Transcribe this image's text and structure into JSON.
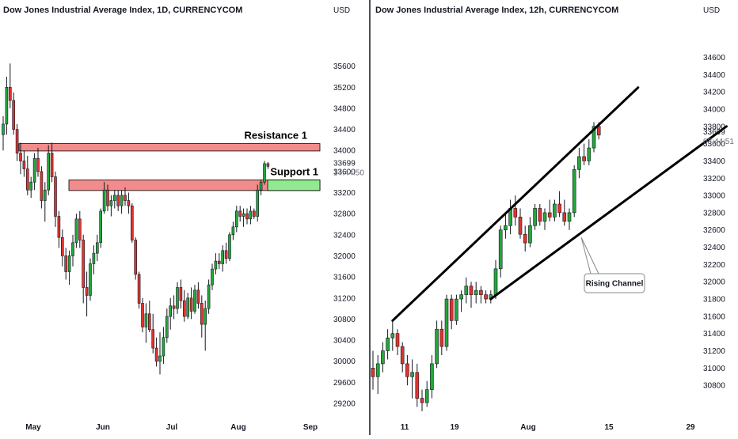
{
  "colors": {
    "up": "#22a83a",
    "down": "#e0342e",
    "wick": "#131722",
    "zone_resistance": "#f28b8b",
    "zone_support": "#93e98f",
    "panel_divider": "#131722"
  },
  "chart_data": [
    {
      "type": "candlestick",
      "title": "Dow Jones Industrial Average Index, 1D, CURRENCYCOM",
      "unit_label": "USD",
      "y_ticks": [
        "35600",
        "35200",
        "34800",
        "34400",
        "34000",
        "33600",
        "33200",
        "32800",
        "32400",
        "32000",
        "31600",
        "31200",
        "30800",
        "30400",
        "30000",
        "29600",
        "29200"
      ],
      "x_ticks": [
        "May",
        "Jun",
        "Jul",
        "Aug",
        "Sep"
      ],
      "ylim": [
        29050,
        36150
      ],
      "last_price": "33699",
      "countdown": "14:44:50",
      "annotations": [
        {
          "label": "Resistance 1",
          "y_low": 33990,
          "y_high": 34130
        },
        {
          "label": "Support 1",
          "y_low": 33240,
          "y_high": 33440
        }
      ],
      "candles": [
        {
          "o": 34300,
          "h": 34650,
          "l": 34000,
          "c": 34500
        },
        {
          "o": 34500,
          "h": 35400,
          "l": 34300,
          "c": 35200
        },
        {
          "o": 35200,
          "h": 35650,
          "l": 34800,
          "c": 34950
        },
        {
          "o": 34950,
          "h": 35100,
          "l": 34300,
          "c": 34400
        },
        {
          "o": 34400,
          "h": 34500,
          "l": 33800,
          "c": 33950
        },
        {
          "o": 33950,
          "h": 34150,
          "l": 33550,
          "c": 33800
        },
        {
          "o": 33800,
          "h": 34000,
          "l": 33500,
          "c": 33650
        },
        {
          "o": 33650,
          "h": 33900,
          "l": 33150,
          "c": 33250
        },
        {
          "o": 33250,
          "h": 33500,
          "l": 33100,
          "c": 33400
        },
        {
          "o": 33400,
          "h": 33950,
          "l": 33250,
          "c": 33850
        },
        {
          "o": 33850,
          "h": 34050,
          "l": 33500,
          "c": 33600
        },
        {
          "o": 33600,
          "h": 33700,
          "l": 32900,
          "c": 33050
        },
        {
          "o": 33050,
          "h": 33400,
          "l": 32650,
          "c": 33250
        },
        {
          "o": 33250,
          "h": 34100,
          "l": 33150,
          "c": 33950
        },
        {
          "o": 33950,
          "h": 34150,
          "l": 33400,
          "c": 33500
        },
        {
          "o": 33500,
          "h": 33600,
          "l": 32550,
          "c": 32750
        },
        {
          "o": 32750,
          "h": 32850,
          "l": 32150,
          "c": 32350
        },
        {
          "o": 32350,
          "h": 32500,
          "l": 31800,
          "c": 32000
        },
        {
          "o": 32000,
          "h": 32150,
          "l": 31550,
          "c": 31700
        },
        {
          "o": 31700,
          "h": 32100,
          "l": 31450,
          "c": 32000
        },
        {
          "o": 32000,
          "h": 32400,
          "l": 31800,
          "c": 32250
        },
        {
          "o": 32250,
          "h": 32800,
          "l": 32150,
          "c": 32700
        },
        {
          "o": 32700,
          "h": 32850,
          "l": 32150,
          "c": 32300
        },
        {
          "o": 32300,
          "h": 32400,
          "l": 31100,
          "c": 31400
        },
        {
          "o": 31400,
          "h": 31700,
          "l": 30850,
          "c": 31250
        },
        {
          "o": 31250,
          "h": 31950,
          "l": 31150,
          "c": 31850
        },
        {
          "o": 31850,
          "h": 32200,
          "l": 31650,
          "c": 32050
        },
        {
          "o": 32050,
          "h": 32400,
          "l": 31900,
          "c": 32250
        },
        {
          "o": 32250,
          "h": 32900,
          "l": 32150,
          "c": 32850
        },
        {
          "o": 32850,
          "h": 33400,
          "l": 32800,
          "c": 33250
        },
        {
          "o": 33250,
          "h": 33350,
          "l": 32850,
          "c": 32950
        },
        {
          "o": 32950,
          "h": 33150,
          "l": 32750,
          "c": 33050
        },
        {
          "o": 33050,
          "h": 33250,
          "l": 32900,
          "c": 33150
        },
        {
          "o": 33150,
          "h": 33250,
          "l": 32850,
          "c": 32950
        },
        {
          "o": 32950,
          "h": 33250,
          "l": 32800,
          "c": 33150
        },
        {
          "o": 33150,
          "h": 33300,
          "l": 32950,
          "c": 33050
        },
        {
          "o": 33050,
          "h": 33200,
          "l": 32800,
          "c": 32950
        },
        {
          "o": 32950,
          "h": 33000,
          "l": 32250,
          "c": 32300
        },
        {
          "o": 32300,
          "h": 32350,
          "l": 31550,
          "c": 31650
        },
        {
          "o": 31650,
          "h": 31700,
          "l": 31000,
          "c": 31100
        },
        {
          "o": 31100,
          "h": 31200,
          "l": 30550,
          "c": 30650
        },
        {
          "o": 30650,
          "h": 31100,
          "l": 30350,
          "c": 30900
        },
        {
          "o": 30900,
          "h": 31150,
          "l": 30550,
          "c": 30600
        },
        {
          "o": 30600,
          "h": 30900,
          "l": 30150,
          "c": 30250
        },
        {
          "o": 30250,
          "h": 30450,
          "l": 29900,
          "c": 30000
        },
        {
          "o": 30000,
          "h": 30550,
          "l": 29750,
          "c": 30100
        },
        {
          "o": 30100,
          "h": 30650,
          "l": 29950,
          "c": 30450
        },
        {
          "o": 30450,
          "h": 31000,
          "l": 30350,
          "c": 30850
        },
        {
          "o": 30850,
          "h": 31200,
          "l": 30600,
          "c": 31050
        },
        {
          "o": 31050,
          "h": 31250,
          "l": 30800,
          "c": 31000
        },
        {
          "o": 31000,
          "h": 31500,
          "l": 30900,
          "c": 31400
        },
        {
          "o": 31400,
          "h": 31550,
          "l": 31000,
          "c": 31150
        },
        {
          "o": 31150,
          "h": 31350,
          "l": 30750,
          "c": 30850
        },
        {
          "o": 30850,
          "h": 31300,
          "l": 30800,
          "c": 31200
        },
        {
          "o": 31200,
          "h": 31400,
          "l": 30800,
          "c": 30950
        },
        {
          "o": 30950,
          "h": 31450,
          "l": 30900,
          "c": 31350
        },
        {
          "o": 31350,
          "h": 31500,
          "l": 31000,
          "c": 31100
        },
        {
          "o": 31100,
          "h": 31250,
          "l": 30450,
          "c": 30700
        },
        {
          "o": 30700,
          "h": 31150,
          "l": 30200,
          "c": 31000
        },
        {
          "o": 31000,
          "h": 31550,
          "l": 30900,
          "c": 31450
        },
        {
          "o": 31450,
          "h": 31850,
          "l": 31350,
          "c": 31750
        },
        {
          "o": 31750,
          "h": 32050,
          "l": 31650,
          "c": 31900
        },
        {
          "o": 31900,
          "h": 32050,
          "l": 31750,
          "c": 31850
        },
        {
          "o": 31850,
          "h": 32200,
          "l": 31700,
          "c": 32100
        },
        {
          "o": 32100,
          "h": 32250,
          "l": 31850,
          "c": 31950
        },
        {
          "o": 31950,
          "h": 32450,
          "l": 31900,
          "c": 32400
        },
        {
          "o": 32400,
          "h": 32650,
          "l": 32300,
          "c": 32550
        },
        {
          "o": 32550,
          "h": 32950,
          "l": 32450,
          "c": 32850
        },
        {
          "o": 32850,
          "h": 32950,
          "l": 32650,
          "c": 32750
        },
        {
          "o": 32750,
          "h": 32900,
          "l": 32550,
          "c": 32800
        },
        {
          "o": 32800,
          "h": 32900,
          "l": 32600,
          "c": 32700
        },
        {
          "o": 32700,
          "h": 32950,
          "l": 32600,
          "c": 32850
        },
        {
          "o": 32850,
          "h": 32900,
          "l": 32700,
          "c": 32750
        },
        {
          "o": 32750,
          "h": 33350,
          "l": 32650,
          "c": 33250
        },
        {
          "o": 33250,
          "h": 33450,
          "l": 33150,
          "c": 33400
        },
        {
          "o": 33400,
          "h": 33800,
          "l": 33350,
          "c": 33750
        },
        {
          "o": 33750,
          "h": 33780,
          "l": 33650,
          "c": 33699
        }
      ]
    },
    {
      "type": "candlestick",
      "title": "Dow Jones Industrial Average Index, 12h, CURRENCYCOM",
      "unit_label": "USD",
      "y_ticks": [
        "34600",
        "34400",
        "34200",
        "34000",
        "33800",
        "33600",
        "33400",
        "33200",
        "33000",
        "32800",
        "32600",
        "32400",
        "32200",
        "32000",
        "31800",
        "31600",
        "31400",
        "31200",
        "31000",
        "30800"
      ],
      "x_ticks": [
        "11",
        "19",
        "Aug",
        "15",
        "29"
      ],
      "ylim": [
        30600,
        34870
      ],
      "last_price": "33699",
      "countdown": "03:44:51",
      "annotations": [
        {
          "label": "Rising Channel"
        }
      ],
      "channel": {
        "upper": [
          {
            "i": 4,
            "v": 31550
          },
          {
            "i": 54,
            "v": 34250
          }
        ],
        "lower": [
          {
            "i": 24,
            "v": 31800
          },
          {
            "i": 72,
            "v": 33800
          }
        ]
      },
      "candles": [
        {
          "o": 31000,
          "h": 31200,
          "l": 30750,
          "c": 30900
        },
        {
          "o": 30900,
          "h": 31150,
          "l": 30700,
          "c": 31050
        },
        {
          "o": 31050,
          "h": 31300,
          "l": 30950,
          "c": 31200
        },
        {
          "o": 31200,
          "h": 31450,
          "l": 31100,
          "c": 31350
        },
        {
          "o": 31350,
          "h": 31550,
          "l": 31200,
          "c": 31400
        },
        {
          "o": 31400,
          "h": 31450,
          "l": 31150,
          "c": 31250
        },
        {
          "o": 31250,
          "h": 31300,
          "l": 30950,
          "c": 31050
        },
        {
          "o": 31050,
          "h": 31150,
          "l": 30800,
          "c": 30900
        },
        {
          "o": 30900,
          "h": 31100,
          "l": 30650,
          "c": 30950
        },
        {
          "o": 30950,
          "h": 31050,
          "l": 30550,
          "c": 30650
        },
        {
          "o": 30650,
          "h": 30750,
          "l": 30500,
          "c": 30600
        },
        {
          "o": 30600,
          "h": 30850,
          "l": 30550,
          "c": 30750
        },
        {
          "o": 30750,
          "h": 31150,
          "l": 30650,
          "c": 31050
        },
        {
          "o": 31050,
          "h": 31550,
          "l": 31000,
          "c": 31450
        },
        {
          "o": 31450,
          "h": 31550,
          "l": 31150,
          "c": 31250
        },
        {
          "o": 31250,
          "h": 31850,
          "l": 31200,
          "c": 31800
        },
        {
          "o": 31800,
          "h": 31850,
          "l": 31450,
          "c": 31550
        },
        {
          "o": 31550,
          "h": 31850,
          "l": 31500,
          "c": 31800
        },
        {
          "o": 31800,
          "h": 31900,
          "l": 31650,
          "c": 31850
        },
        {
          "o": 31850,
          "h": 32050,
          "l": 31750,
          "c": 31950
        },
        {
          "o": 31950,
          "h": 32000,
          "l": 31700,
          "c": 31850
        },
        {
          "o": 31850,
          "h": 32000,
          "l": 31750,
          "c": 31900
        },
        {
          "o": 31900,
          "h": 31950,
          "l": 31750,
          "c": 31850
        },
        {
          "o": 31850,
          "h": 31900,
          "l": 31750,
          "c": 31800
        },
        {
          "o": 31800,
          "h": 31900,
          "l": 31750,
          "c": 31850
        },
        {
          "o": 31850,
          "h": 32250,
          "l": 31800,
          "c": 32150
        },
        {
          "o": 32150,
          "h": 32650,
          "l": 32050,
          "c": 32600
        },
        {
          "o": 32600,
          "h": 32800,
          "l": 32500,
          "c": 32650
        },
        {
          "o": 32650,
          "h": 32950,
          "l": 32550,
          "c": 32850
        },
        {
          "o": 32850,
          "h": 33000,
          "l": 32650,
          "c": 32750
        },
        {
          "o": 32750,
          "h": 32850,
          "l": 32500,
          "c": 32550
        },
        {
          "o": 32550,
          "h": 32650,
          "l": 32350,
          "c": 32450
        },
        {
          "o": 32450,
          "h": 32750,
          "l": 32400,
          "c": 32650
        },
        {
          "o": 32650,
          "h": 32900,
          "l": 32600,
          "c": 32850
        },
        {
          "o": 32850,
          "h": 32900,
          "l": 32650,
          "c": 32700
        },
        {
          "o": 32700,
          "h": 32850,
          "l": 32600,
          "c": 32800
        },
        {
          "o": 32800,
          "h": 32950,
          "l": 32700,
          "c": 32750
        },
        {
          "o": 32750,
          "h": 32950,
          "l": 32700,
          "c": 32900
        },
        {
          "o": 32900,
          "h": 33050,
          "l": 32750,
          "c": 32800
        },
        {
          "o": 32800,
          "h": 32950,
          "l": 32650,
          "c": 32700
        },
        {
          "o": 32700,
          "h": 32850,
          "l": 32600,
          "c": 32800
        },
        {
          "o": 32800,
          "h": 33350,
          "l": 32750,
          "c": 33300
        },
        {
          "o": 33300,
          "h": 33550,
          "l": 33200,
          "c": 33450
        },
        {
          "o": 33450,
          "h": 33600,
          "l": 33350,
          "c": 33400
        },
        {
          "o": 33400,
          "h": 33650,
          "l": 33350,
          "c": 33550
        },
        {
          "o": 33550,
          "h": 33850,
          "l": 33500,
          "c": 33800
        },
        {
          "o": 33800,
          "h": 33850,
          "l": 33650,
          "c": 33699
        }
      ]
    }
  ]
}
